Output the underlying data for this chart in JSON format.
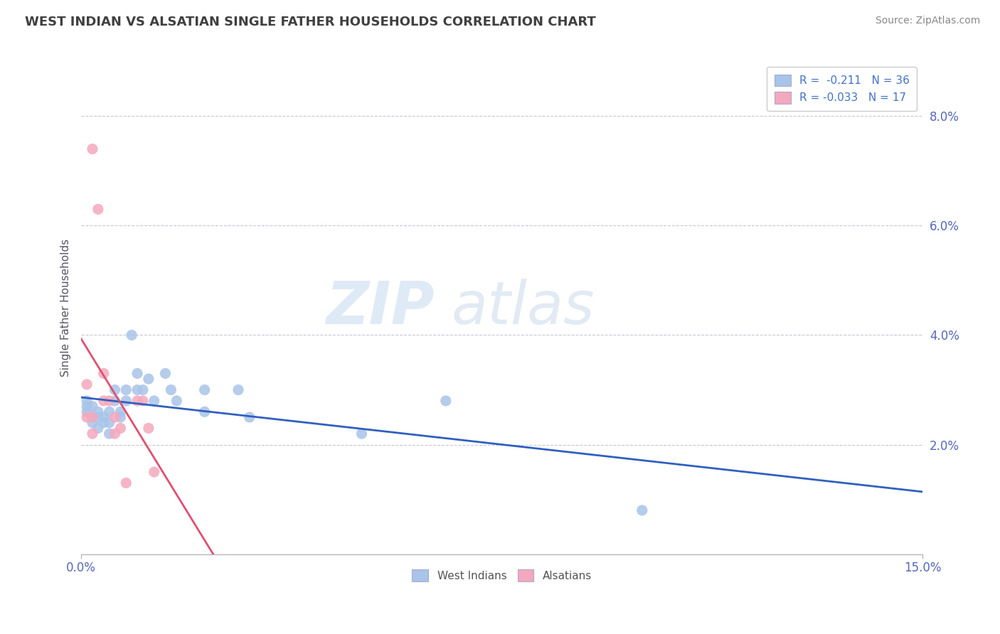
{
  "title": "WEST INDIAN VS ALSATIAN SINGLE FATHER HOUSEHOLDS CORRELATION CHART",
  "source": "Source: ZipAtlas.com",
  "ylabel": "Single Father Households",
  "xlim": [
    0.0,
    0.15
  ],
  "ylim": [
    0.0,
    0.09
  ],
  "ytick_labels": [
    "2.0%",
    "4.0%",
    "6.0%",
    "8.0%"
  ],
  "ytick_vals": [
    0.02,
    0.04,
    0.06,
    0.08
  ],
  "west_indian_R": "-0.211",
  "west_indian_N": "36",
  "alsatian_R": "-0.033",
  "alsatian_N": "17",
  "legend_xlabel_labels": [
    "West Indians",
    "Alsatians"
  ],
  "blue_color": "#a8c4e8",
  "pink_color": "#f4a8be",
  "blue_line_color": "#3060c0",
  "pink_line_color": "#e05070",
  "background_color": "#ffffff",
  "grid_color": "#c8c8d8",
  "title_color": "#404040",
  "watermark_zip": "ZIP",
  "watermark_atlas": "atlas",
  "west_indian_points": [
    [
      0.001,
      0.028
    ],
    [
      0.001,
      0.027
    ],
    [
      0.001,
      0.026
    ],
    [
      0.002,
      0.027
    ],
    [
      0.002,
      0.025
    ],
    [
      0.002,
      0.024
    ],
    [
      0.003,
      0.026
    ],
    [
      0.003,
      0.025
    ],
    [
      0.003,
      0.023
    ],
    [
      0.004,
      0.025
    ],
    [
      0.004,
      0.024
    ],
    [
      0.005,
      0.026
    ],
    [
      0.005,
      0.024
    ],
    [
      0.005,
      0.022
    ],
    [
      0.006,
      0.03
    ],
    [
      0.006,
      0.028
    ],
    [
      0.007,
      0.026
    ],
    [
      0.007,
      0.025
    ],
    [
      0.008,
      0.03
    ],
    [
      0.008,
      0.028
    ],
    [
      0.009,
      0.04
    ],
    [
      0.01,
      0.033
    ],
    [
      0.01,
      0.03
    ],
    [
      0.011,
      0.03
    ],
    [
      0.012,
      0.032
    ],
    [
      0.013,
      0.028
    ],
    [
      0.015,
      0.033
    ],
    [
      0.016,
      0.03
    ],
    [
      0.017,
      0.028
    ],
    [
      0.022,
      0.03
    ],
    [
      0.022,
      0.026
    ],
    [
      0.028,
      0.03
    ],
    [
      0.03,
      0.025
    ],
    [
      0.05,
      0.022
    ],
    [
      0.065,
      0.028
    ],
    [
      0.1,
      0.008
    ]
  ],
  "alsatian_points": [
    [
      0.001,
      0.031
    ],
    [
      0.001,
      0.025
    ],
    [
      0.002,
      0.025
    ],
    [
      0.002,
      0.022
    ],
    [
      0.002,
      0.074
    ],
    [
      0.003,
      0.063
    ],
    [
      0.004,
      0.033
    ],
    [
      0.004,
      0.028
    ],
    [
      0.005,
      0.028
    ],
    [
      0.006,
      0.025
    ],
    [
      0.006,
      0.022
    ],
    [
      0.007,
      0.023
    ],
    [
      0.008,
      0.013
    ],
    [
      0.01,
      0.028
    ],
    [
      0.011,
      0.028
    ],
    [
      0.012,
      0.023
    ],
    [
      0.013,
      0.015
    ]
  ]
}
